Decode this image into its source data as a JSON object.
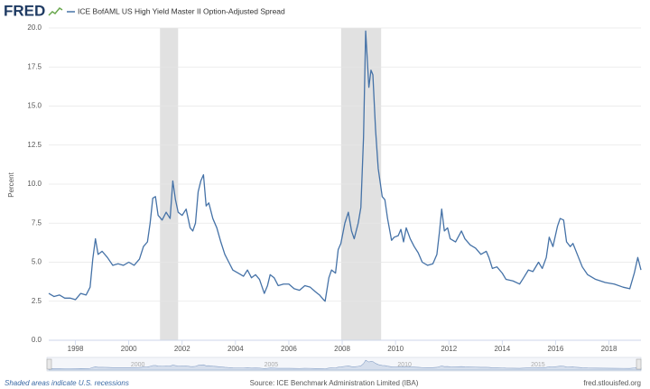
{
  "chart_data": {
    "type": "line",
    "logo": "FRED",
    "ylabel": "Percent",
    "ylim": [
      0,
      20
    ],
    "yticks": [
      {
        "value": 0,
        "label": "0.0"
      },
      2.5,
      {
        "value": 5,
        "label": "5.0"
      },
      7.5,
      {
        "value": 10,
        "label": "10.0"
      },
      12.5,
      {
        "value": 15,
        "label": "15.0"
      },
      17.5,
      {
        "value": 20,
        "label": "20.0"
      }
    ],
    "xlim": [
      1997,
      2019.2
    ],
    "xticks": [
      1998,
      2000,
      2002,
      2004,
      2006,
      2008,
      2010,
      2012,
      2014,
      2016,
      2018
    ],
    "grid": true,
    "recessions": [
      [
        2001.17,
        2001.85
      ],
      [
        2007.96,
        2009.46
      ]
    ],
    "recession_color": "#e1e1e1",
    "navigator_ticks": [
      2000,
      2005,
      2010,
      2015
    ],
    "series": [
      {
        "name": "ICE BofAML US High Yield Master II Option-Adjusted Spread",
        "color": "#4572a7",
        "x": [
          1997.0,
          1997.2,
          1997.4,
          1997.6,
          1997.8,
          1998.0,
          1998.2,
          1998.4,
          1998.55,
          1998.65,
          1998.75,
          1998.85,
          1999.0,
          1999.2,
          1999.4,
          1999.6,
          1999.8,
          2000.0,
          2000.2,
          2000.4,
          2000.55,
          2000.7,
          2000.8,
          2000.9,
          2001.0,
          2001.1,
          2001.25,
          2001.4,
          2001.55,
          2001.65,
          2001.75,
          2001.85,
          2002.0,
          2002.15,
          2002.3,
          2002.4,
          2002.5,
          2002.6,
          2002.7,
          2002.8,
          2002.9,
          2003.0,
          2003.15,
          2003.3,
          2003.45,
          2003.6,
          2003.75,
          2003.9,
          2004.1,
          2004.3,
          2004.45,
          2004.6,
          2004.75,
          2004.9,
          2005.0,
          2005.08,
          2005.2,
          2005.3,
          2005.45,
          2005.6,
          2005.8,
          2006.0,
          2006.2,
          2006.4,
          2006.6,
          2006.8,
          2007.0,
          2007.15,
          2007.3,
          2007.36,
          2007.5,
          2007.6,
          2007.75,
          2007.85,
          2007.95,
          2008.1,
          2008.23,
          2008.35,
          2008.45,
          2008.6,
          2008.7,
          2008.8,
          2008.88,
          2009.0,
          2009.08,
          2009.15,
          2009.25,
          2009.35,
          2009.5,
          2009.6,
          2009.7,
          2009.85,
          2009.95,
          2010.1,
          2010.2,
          2010.3,
          2010.4,
          2010.55,
          2010.7,
          2010.85,
          2011.0,
          2011.2,
          2011.4,
          2011.55,
          2011.65,
          2011.73,
          2011.83,
          2011.95,
          2012.05,
          2012.25,
          2012.47,
          2012.6,
          2012.8,
          2013.0,
          2013.2,
          2013.4,
          2013.5,
          2013.63,
          2013.8,
          2014.0,
          2014.14,
          2014.4,
          2014.65,
          2014.8,
          2014.98,
          2015.15,
          2015.36,
          2015.5,
          2015.65,
          2015.76,
          2015.9,
          2016.07,
          2016.17,
          2016.3,
          2016.41,
          2016.55,
          2016.65,
          2016.86,
          2017.0,
          2017.2,
          2017.5,
          2017.86,
          2018.2,
          2018.53,
          2018.78,
          2018.95,
          2019.08,
          2019.2
        ],
        "values": [
          3.0,
          2.8,
          2.9,
          2.7,
          2.7,
          2.6,
          3.0,
          2.9,
          3.4,
          5.2,
          6.5,
          5.5,
          5.7,
          5.3,
          4.8,
          4.9,
          4.8,
          5.0,
          4.8,
          5.2,
          6.0,
          6.3,
          7.5,
          9.1,
          9.2,
          8.0,
          7.7,
          8.2,
          7.8,
          10.2,
          9.0,
          8.2,
          8.0,
          8.4,
          7.2,
          7.0,
          7.5,
          9.5,
          10.2,
          10.6,
          8.6,
          8.8,
          7.8,
          7.2,
          6.3,
          5.5,
          5.0,
          4.5,
          4.3,
          4.1,
          4.5,
          4.0,
          4.2,
          3.9,
          3.4,
          3.0,
          3.5,
          4.2,
          4.0,
          3.5,
          3.6,
          3.6,
          3.3,
          3.2,
          3.5,
          3.4,
          3.1,
          2.9,
          2.6,
          2.5,
          4.0,
          4.5,
          4.3,
          5.8,
          6.2,
          7.5,
          8.2,
          7.0,
          6.5,
          7.5,
          8.5,
          13.0,
          19.8,
          16.2,
          17.3,
          17.0,
          13.5,
          11.0,
          9.2,
          9.0,
          7.8,
          6.4,
          6.6,
          6.7,
          7.1,
          6.3,
          7.2,
          6.5,
          6.0,
          5.6,
          5.0,
          4.8,
          4.9,
          5.5,
          7.0,
          8.4,
          7.0,
          7.2,
          6.5,
          6.3,
          7.0,
          6.5,
          6.1,
          5.9,
          5.5,
          5.7,
          5.3,
          4.6,
          4.7,
          4.3,
          3.9,
          3.8,
          3.6,
          4.0,
          4.5,
          4.4,
          5.0,
          4.6,
          5.3,
          6.6,
          6.0,
          7.3,
          7.8,
          7.7,
          6.3,
          6.0,
          6.2,
          5.3,
          4.7,
          4.2,
          3.9,
          3.7,
          3.6,
          3.4,
          3.3,
          4.3,
          5.3,
          4.5
        ]
      }
    ],
    "footer_left": "Shaded areas indicate U.S. recessions",
    "footer_center": "Source: ICE Benchmark Administration Limited (IBA)",
    "footer_right": "fred.stlouisfed.org"
  }
}
